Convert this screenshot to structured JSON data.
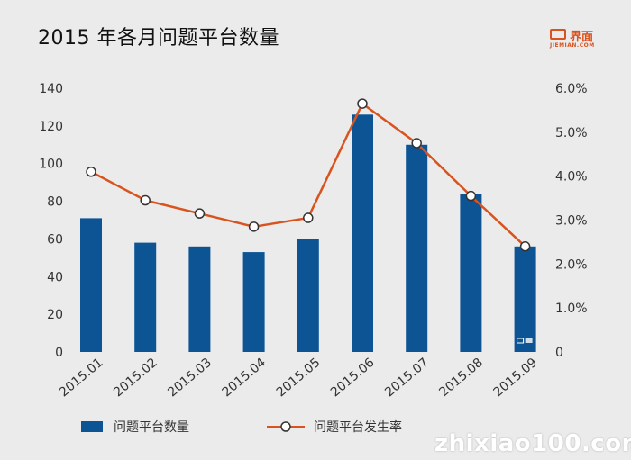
{
  "title": "2015 年各月问题平台数量",
  "logo": {
    "cn": "界面",
    "en": "JIEMIAN.COM"
  },
  "watermark": "zhixiao100.com",
  "colors": {
    "bar": "#0d5495",
    "line": "#d9531e",
    "text": "#333333",
    "background": "#ebebeb"
  },
  "chart_data": {
    "type": "bar",
    "categories": [
      "2015.01",
      "2015.02",
      "2015.03",
      "2015.04",
      "2015.05",
      "2015.06",
      "2015.07",
      "2015.08",
      "2015.09"
    ],
    "series": [
      {
        "name": "问题平台数量",
        "type": "bar",
        "axis": "left",
        "values": [
          71,
          58,
          56,
          53,
          60,
          126,
          110,
          84,
          56
        ]
      },
      {
        "name": "问题平台发生率",
        "type": "line",
        "axis": "right",
        "values": [
          4.1,
          3.45,
          3.15,
          2.85,
          3.05,
          5.65,
          4.75,
          3.55,
          2.4
        ]
      }
    ],
    "y_left": {
      "min": 0,
      "max": 140,
      "ticks": [
        "0",
        "20",
        "40",
        "60",
        "80",
        "100",
        "120",
        "140"
      ]
    },
    "y_right": {
      "min": 0,
      "max": 6,
      "ticks": [
        "0",
        "1.0%",
        "2.0%",
        "3.0%",
        "4.0%",
        "5.0%",
        "6.0%"
      ]
    },
    "grid": false,
    "legend_position": "bottom-left"
  }
}
